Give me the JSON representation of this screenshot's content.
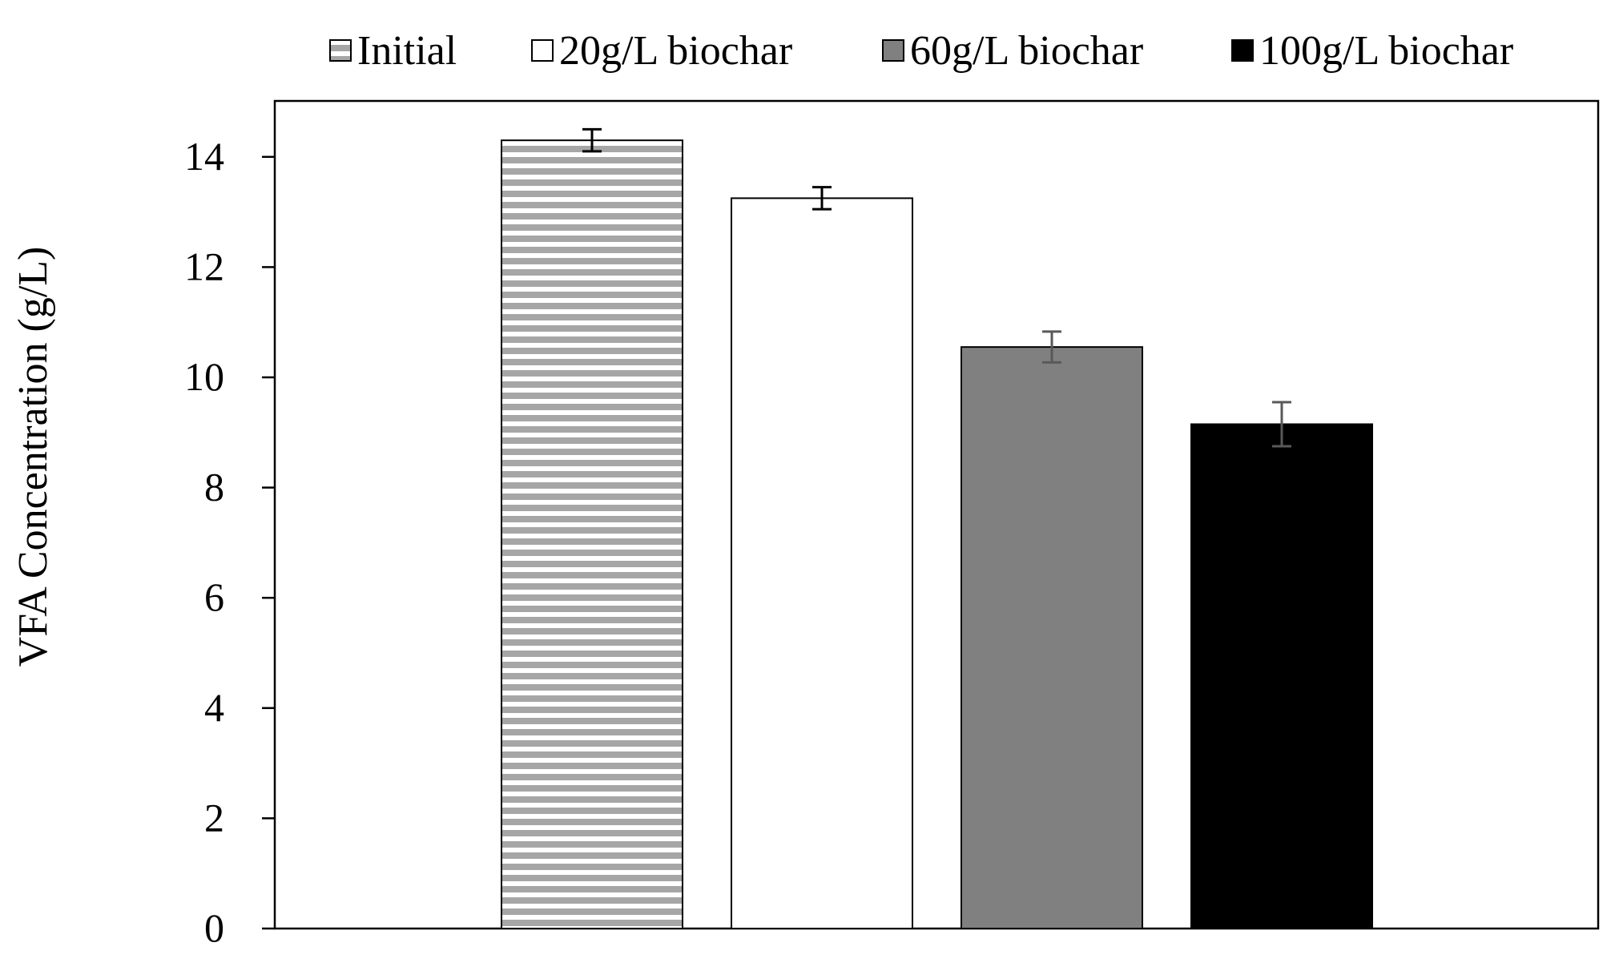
{
  "chart_data": {
    "type": "bar",
    "title": "",
    "xlabel": "",
    "ylabel": "VFA Concentration (g/L)",
    "ylim": [
      0,
      15
    ],
    "yticks": [
      0,
      2,
      4,
      6,
      8,
      10,
      12,
      14
    ],
    "grid": false,
    "legend_position": "top",
    "series": [
      {
        "name": "Initial",
        "value": 14.3,
        "error": 0.2,
        "fill": "#a6a6a6",
        "pattern": "horizontal-stripes",
        "error_color": "#000000"
      },
      {
        "name": "20g/L biochar",
        "value": 13.25,
        "error": 0.2,
        "fill": "#ffffff",
        "pattern": "none",
        "error_color": "#000000"
      },
      {
        "name": "60g/L biochar",
        "value": 10.55,
        "error": 0.28,
        "fill": "#808080",
        "pattern": "none",
        "error_color": "#595959"
      },
      {
        "name": "100g/L biochar",
        "value": 9.15,
        "error": 0.4,
        "fill": "#000000",
        "pattern": "none",
        "error_color": "#595959"
      }
    ]
  }
}
